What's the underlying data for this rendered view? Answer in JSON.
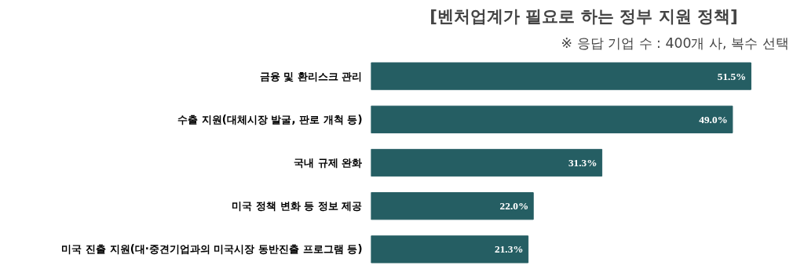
{
  "chart_data": {
    "type": "bar",
    "orientation": "horizontal",
    "title": "[벤처업계가 필요로 하는 정부 지원 정책]",
    "subtitle": "※ 응답 기업 수 : 400개 사, 복수 선택",
    "categories": [
      "금융 및 환리스크 관리",
      "수출 지원(대체시장 발굴, 판로 개척 등)",
      "국내 규제 완화",
      "미국 정책 변화 등 정보 제공",
      "미국 진출 지원(대·중견기업과의 미국시장 동반진출 프로그램 등)"
    ],
    "values": [
      51.5,
      49.0,
      31.3,
      22.0,
      21.3
    ],
    "value_labels": [
      "51.5%",
      "49.0%",
      "31.3%",
      "22.0%",
      "21.3%"
    ],
    "color": "#255e63",
    "grid": false
  }
}
